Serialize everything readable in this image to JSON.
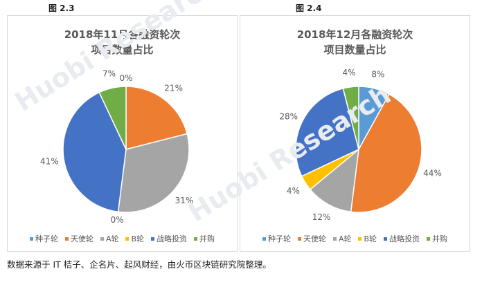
{
  "chart_data": [
    {
      "type": "pie",
      "figure_label": "图 2.3",
      "title": [
        "2018年11月各融资轮次",
        "项目数量占比"
      ],
      "categories": [
        "种子轮",
        "天使轮",
        "A轮",
        "B轮",
        "战略投资",
        "并购"
      ],
      "values": [
        0,
        21,
        31,
        0,
        41,
        7
      ],
      "data_labels": [
        "0%",
        "21%",
        "31%",
        "0%",
        "41%",
        "7%"
      ],
      "colors": [
        "#5b9bd5",
        "#ed7d31",
        "#a5a5a5",
        "#ffc000",
        "#4472c4",
        "#70ad47"
      ],
      "legend_position": "bottom"
    },
    {
      "type": "pie",
      "figure_label": "图 2.4",
      "title": [
        "2018年12月各融资轮次",
        "项目数量占比"
      ],
      "categories": [
        "种子轮",
        "天使轮",
        "A轮",
        "B轮",
        "战略投资",
        "并购"
      ],
      "values": [
        8,
        44,
        12,
        4,
        28,
        4
      ],
      "data_labels": [
        "8%",
        "44%",
        "12%",
        "4%",
        "28%",
        "4%"
      ],
      "colors": [
        "#5b9bd5",
        "#ed7d31",
        "#a5a5a5",
        "#ffc000",
        "#4472c4",
        "#70ad47"
      ],
      "legend_position": "bottom"
    }
  ],
  "source_note": "数据来源于 IT 桔子、企名片、起风财经，由火币区块链研究院整理。",
  "watermark": "Huobi Research"
}
